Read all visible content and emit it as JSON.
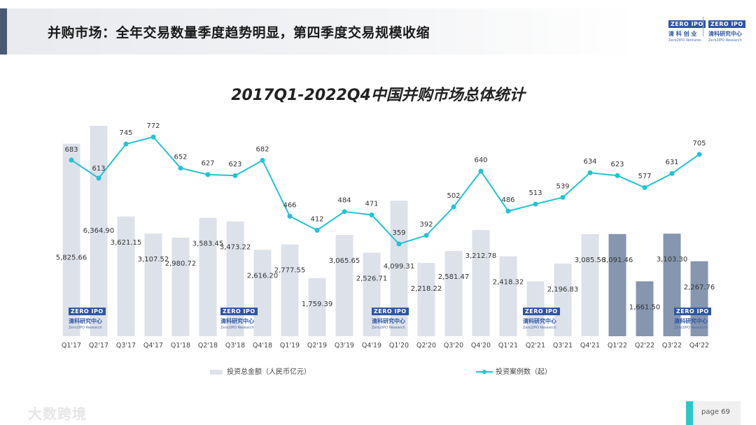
{
  "header": {
    "title": "并购市场：全年交易数量季度趋势明显，第四季度交易规模收缩",
    "logo_left": {
      "top": "ZERO IPO",
      "cn": "清 科 创 业",
      "en": "Zero2IPO Ventures"
    },
    "logo_right": {
      "top": "ZERO IPO",
      "cn": "清科研究中心",
      "en": "Zero2IPO Research"
    }
  },
  "watermark": {
    "top": "ZERO IPO",
    "cn": "清科研究中心",
    "en": "Zero2IPO Research"
  },
  "footer": {
    "brand": "大数跨境",
    "page_label": "page  69"
  },
  "colors": {
    "bar": "#dde1ea",
    "bar_highlight": "#8596ae",
    "line": "#22c3d3",
    "accent": "#2ec6c6"
  },
  "chart_data": {
    "type": "bar",
    "title": "2017Q1-2022Q4中国并购市场总体统计",
    "categories": [
      "Q1'17",
      "Q2'17",
      "Q3'17",
      "Q4'17",
      "Q1'18",
      "Q2'18",
      "Q3'18",
      "Q4'18",
      "Q1'19",
      "Q2'19",
      "Q3'19",
      "Q4'19",
      "Q1'20",
      "Q2'20",
      "Q3'20",
      "Q4'20",
      "Q1'21",
      "Q2'21",
      "Q3'21",
      "Q4'21",
      "Q1'22",
      "Q2'22",
      "Q3'22",
      "Q4'22"
    ],
    "series": [
      {
        "name": "投资总金额（人民币亿元）",
        "type": "bar",
        "values": [
          5825.66,
          6364.9,
          3621.15,
          3107.52,
          2980.72,
          3583.45,
          3473.22,
          2616.2,
          2777.55,
          1759.39,
          3065.65,
          2526.71,
          4099.31,
          2218.22,
          2581.47,
          3212.78,
          2418.32,
          1661.5,
          2196.83,
          3085.56,
          3091.46,
          1661.5,
          3103.3,
          2267.76
        ],
        "labels": [
          "5,825.66",
          "6,364.90",
          "3,621.15",
          "3,107.52",
          "2,980.72",
          "3,583.45",
          "3,473.22",
          "2,616.20",
          "2,777.55",
          "1,759.39",
          "3,065.65",
          "2,526.71",
          "4,099.31",
          "2,218.22",
          "2,581.47",
          "3,212.78",
          "2,418.32",
          "",
          "2,196.83",
          "3,085.56",
          "3,091.46",
          "1,661.50",
          "3,103.30",
          "2,267.76"
        ],
        "highlight_from": "Q1'22"
      },
      {
        "name": "投资案例数（起）",
        "type": "line",
        "values": [
          683,
          613,
          745,
          772,
          652,
          627,
          623,
          682,
          466,
          412,
          484,
          471,
          359,
          392,
          502,
          640,
          486,
          513,
          539,
          634,
          623,
          577,
          631,
          705
        ]
      }
    ],
    "legend": "bottom"
  }
}
